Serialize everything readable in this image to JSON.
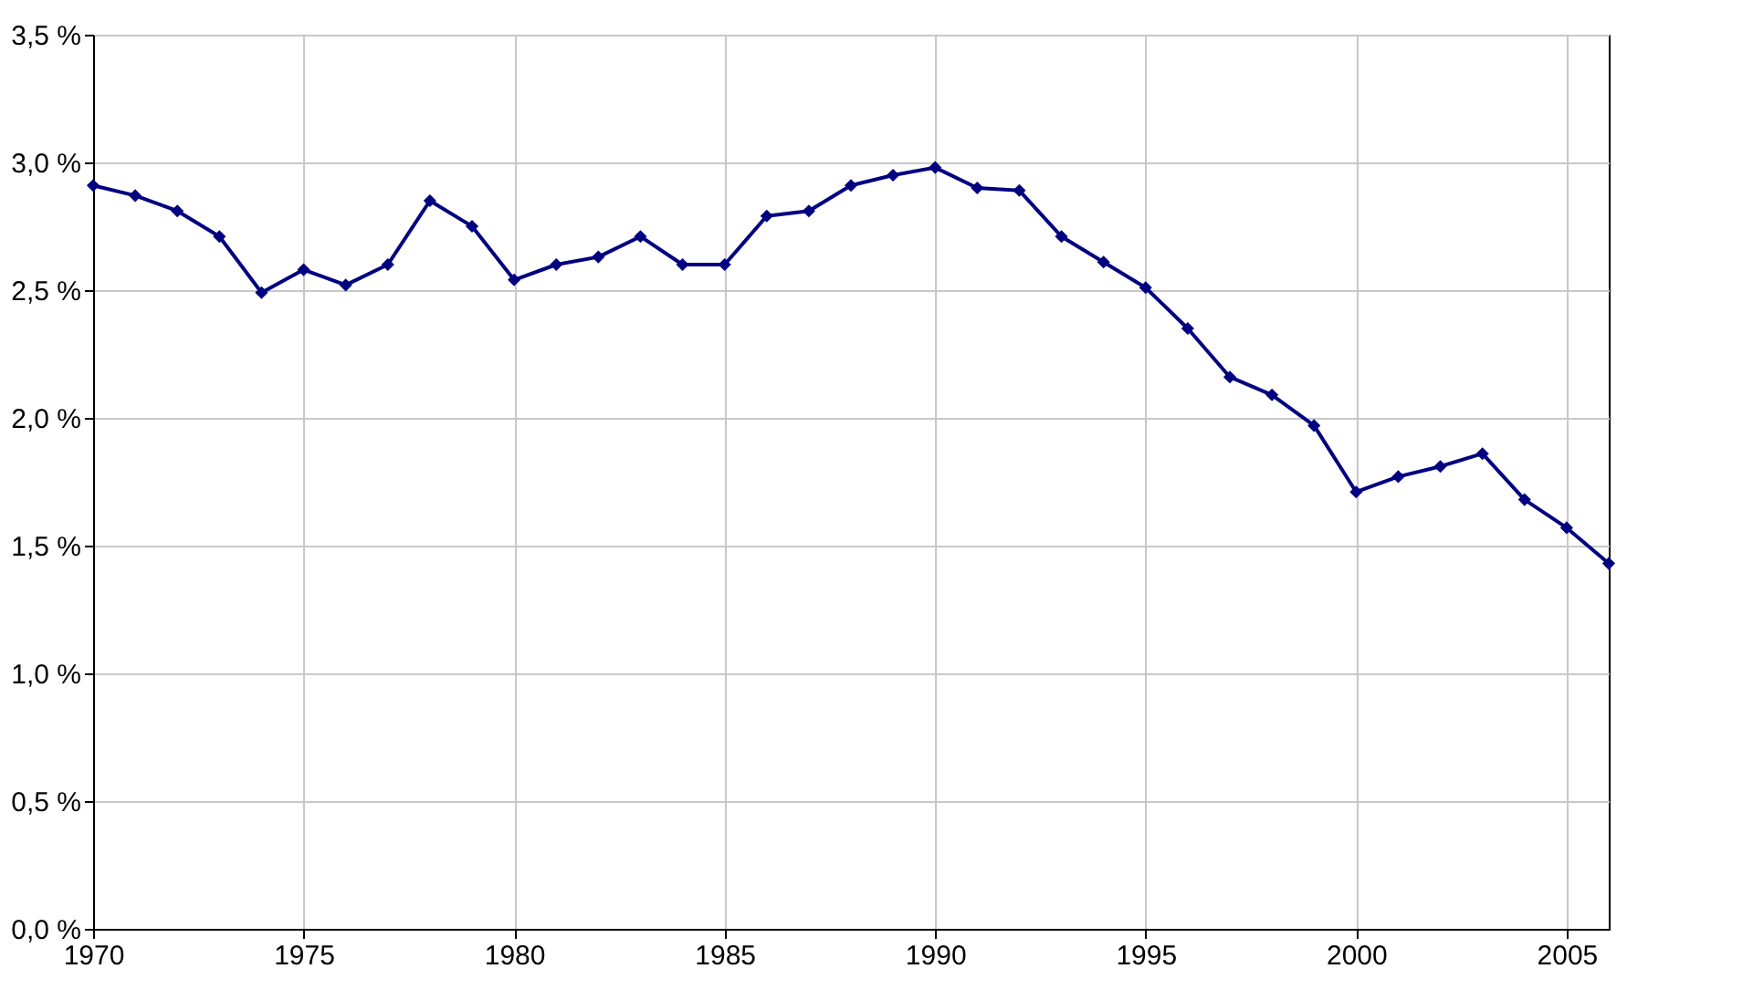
{
  "chart_data": {
    "type": "line",
    "x": [
      1970,
      1971,
      1972,
      1973,
      1974,
      1975,
      1976,
      1977,
      1978,
      1979,
      1980,
      1981,
      1982,
      1983,
      1984,
      1985,
      1986,
      1987,
      1988,
      1989,
      1990,
      1991,
      1992,
      1993,
      1994,
      1995,
      1996,
      1997,
      1998,
      1999,
      2000,
      2001,
      2002,
      2003,
      2004,
      2005,
      2006
    ],
    "series": [
      {
        "color": "#000080",
        "values": [
          2.91,
          2.87,
          2.81,
          2.71,
          2.49,
          2.58,
          2.52,
          2.6,
          2.85,
          2.75,
          2.54,
          2.6,
          2.63,
          2.71,
          2.6,
          2.6,
          2.79,
          2.81,
          2.91,
          2.95,
          2.98,
          2.9,
          2.89,
          2.71,
          2.61,
          2.51,
          2.35,
          2.16,
          2.09,
          1.97,
          1.71,
          1.77,
          1.81,
          1.86,
          1.68,
          1.57,
          1.43
        ]
      }
    ],
    "xlim": [
      1970,
      2006
    ],
    "xticks": [
      1970,
      1975,
      1980,
      1985,
      1990,
      1995,
      2000,
      2005
    ],
    "ylim": [
      0,
      3.5
    ],
    "yticks": [
      {
        "value": 0,
        "label": "0,0 %"
      },
      {
        "value": 0.5,
        "label": "0,5 %"
      },
      {
        "value": 1,
        "label": "1,0 %"
      },
      {
        "value": 1.5,
        "label": "1,5 %"
      },
      {
        "value": 2,
        "label": "2,0 %"
      },
      {
        "value": 2.5,
        "label": "2,5 %"
      },
      {
        "value": 3,
        "label": "3,0 %"
      },
      {
        "value": 3.5,
        "label": "3,5 %"
      }
    ],
    "grid": true,
    "marker": "diamond",
    "line_style": "solid"
  }
}
